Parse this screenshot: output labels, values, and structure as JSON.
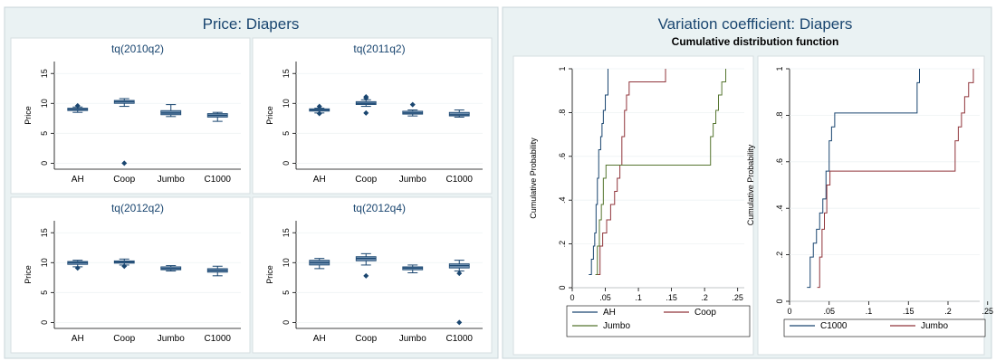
{
  "left_figure": {
    "title": "Price: Diapers",
    "ylabel": "Price",
    "categories": [
      "AH",
      "Coop",
      "Jumbo",
      "C1000"
    ],
    "yticks": [
      "0",
      "5",
      "10",
      "15"
    ],
    "ylim": [
      -1,
      17
    ]
  },
  "right_figure": {
    "title": "Variation coefficient: Diapers",
    "subtitle": "Cumulative distribution function",
    "ylabel": "Cumulative Probability",
    "xticks": [
      "0",
      ".05",
      ".1",
      ".15",
      ".2",
      ".25"
    ],
    "yticks": [
      "0",
      ".2",
      ".4",
      ".6",
      ".8",
      "1"
    ]
  },
  "colors": {
    "box_fill": "#6f8faf",
    "box_line": "#1a4670",
    "AH": "#1a4670",
    "Coop": "#90353b",
    "Jumbo": "#55752f",
    "C1000": "#1a4670",
    "Jumbo_right": "#90353b",
    "panel_bg": "#ffffff",
    "outer_bg": "#eaf2f3"
  },
  "chart_data": [
    {
      "type": "box",
      "title": "tq(2010q2)",
      "ylabel": "Price",
      "categories": [
        "AH",
        "Coop",
        "Jumbo",
        "C1000"
      ],
      "ylim": [
        -1,
        17
      ],
      "boxes": [
        {
          "min": 8.5,
          "q1": 8.8,
          "median": 9.0,
          "q3": 9.2,
          "max": 9.4,
          "outliers": [
            9.6
          ]
        },
        {
          "min": 9.5,
          "q1": 10.0,
          "median": 10.3,
          "q3": 10.5,
          "max": 10.8,
          "outliers": [
            0.0
          ]
        },
        {
          "min": 7.8,
          "q1": 8.1,
          "median": 8.4,
          "q3": 8.8,
          "max": 9.8,
          "outliers": []
        },
        {
          "min": 7.0,
          "q1": 7.7,
          "median": 8.0,
          "q3": 8.3,
          "max": 8.5,
          "outliers": []
        }
      ]
    },
    {
      "type": "box",
      "title": "tq(2011q2)",
      "ylabel": "Price",
      "categories": [
        "AH",
        "Coop",
        "Jumbo",
        "C1000"
      ],
      "ylim": [
        -1,
        17
      ],
      "boxes": [
        {
          "min": 8.4,
          "q1": 8.7,
          "median": 8.9,
          "q3": 9.1,
          "max": 9.2,
          "outliers": [
            8.3,
            9.5
          ]
        },
        {
          "min": 9.5,
          "q1": 9.8,
          "median": 10.0,
          "q3": 10.3,
          "max": 10.6,
          "outliers": [
            8.4,
            10.9,
            11.1
          ]
        },
        {
          "min": 7.9,
          "q1": 8.2,
          "median": 8.4,
          "q3": 8.7,
          "max": 8.9,
          "outliers": [
            9.8
          ]
        },
        {
          "min": 7.7,
          "q1": 7.9,
          "median": 8.1,
          "q3": 8.5,
          "max": 8.9,
          "outliers": []
        }
      ]
    },
    {
      "type": "box",
      "title": "tq(2012q2)",
      "ylabel": "Price",
      "categories": [
        "AH",
        "Coop",
        "Jumbo",
        "C1000"
      ],
      "ylim": [
        -1,
        17
      ],
      "boxes": [
        {
          "min": 9.3,
          "q1": 9.7,
          "median": 10.0,
          "q3": 10.2,
          "max": 10.4,
          "outliers": [
            9.1
          ]
        },
        {
          "min": 9.6,
          "q1": 9.9,
          "median": 10.1,
          "q3": 10.3,
          "max": 10.6,
          "outliers": [
            9.4
          ]
        },
        {
          "min": 8.6,
          "q1": 8.8,
          "median": 9.0,
          "q3": 9.3,
          "max": 9.5,
          "outliers": []
        },
        {
          "min": 7.8,
          "q1": 8.4,
          "median": 8.7,
          "q3": 9.0,
          "max": 9.4,
          "outliers": []
        }
      ]
    },
    {
      "type": "box",
      "title": "tq(2012q4)",
      "ylabel": "Price",
      "categories": [
        "AH",
        "Coop",
        "Jumbo",
        "C1000"
      ],
      "ylim": [
        -1,
        17
      ],
      "boxes": [
        {
          "min": 9.0,
          "q1": 9.6,
          "median": 10.0,
          "q3": 10.4,
          "max": 10.7,
          "outliers": []
        },
        {
          "min": 9.6,
          "q1": 10.3,
          "median": 10.7,
          "q3": 11.0,
          "max": 11.5,
          "outliers": [
            7.8
          ]
        },
        {
          "min": 8.3,
          "q1": 8.8,
          "median": 9.1,
          "q3": 9.3,
          "max": 9.6,
          "outliers": []
        },
        {
          "min": 8.6,
          "q1": 9.1,
          "median": 9.5,
          "q3": 9.8,
          "max": 10.4,
          "outliers": [
            8.2,
            0.0
          ]
        }
      ]
    },
    {
      "type": "line",
      "subtype": "step",
      "title": "Variation coefficient: Diapers",
      "subtitle": "Cumulative distribution function",
      "ylabel": "Cumulative Probability",
      "xlim": [
        0,
        0.26
      ],
      "ylim": [
        0,
        1
      ],
      "xticks": [
        0,
        0.05,
        0.1,
        0.15,
        0.2,
        0.25
      ],
      "yticks": [
        0,
        0.2,
        0.4,
        0.6,
        0.8,
        1
      ],
      "legend": "bottom",
      "series": [
        {
          "name": "AH",
          "x": [
            0.025,
            0.029,
            0.032,
            0.034,
            0.036,
            0.038,
            0.04,
            0.043,
            0.045,
            0.047,
            0.05,
            0.054
          ],
          "y": [
            0.06,
            0.13,
            0.19,
            0.25,
            0.38,
            0.5,
            0.63,
            0.69,
            0.75,
            0.81,
            0.88,
            1.0
          ]
        },
        {
          "name": "Coop",
          "x": [
            0.038,
            0.042,
            0.046,
            0.052,
            0.058,
            0.064,
            0.068,
            0.072,
            0.075,
            0.079,
            0.082,
            0.086,
            0.141
          ],
          "y": [
            0.06,
            0.19,
            0.25,
            0.31,
            0.38,
            0.44,
            0.5,
            0.56,
            0.69,
            0.81,
            0.88,
            0.94,
            1.0
          ]
        },
        {
          "name": "Jumbo",
          "x": [
            0.035,
            0.038,
            0.041,
            0.044,
            0.047,
            0.051,
            0.209,
            0.213,
            0.217,
            0.221,
            0.226,
            0.232
          ],
          "y": [
            0.06,
            0.19,
            0.31,
            0.38,
            0.5,
            0.56,
            0.69,
            0.75,
            0.81,
            0.88,
            0.94,
            1.0
          ]
        }
      ]
    },
    {
      "type": "line",
      "subtype": "step",
      "ylabel": "Cumulative Probability",
      "xlim": [
        0,
        0.24
      ],
      "ylim": [
        0,
        1
      ],
      "xticks": [
        0,
        0.05,
        0.1,
        0.15,
        0.2,
        0.25
      ],
      "yticks": [
        0,
        0.2,
        0.4,
        0.6,
        0.8,
        1
      ],
      "legend": "bottom",
      "series": [
        {
          "name": "C1000",
          "x": [
            0.022,
            0.026,
            0.03,
            0.034,
            0.038,
            0.042,
            0.046,
            0.05,
            0.053,
            0.057,
            0.161,
            0.164
          ],
          "y": [
            0.06,
            0.19,
            0.25,
            0.31,
            0.38,
            0.44,
            0.56,
            0.69,
            0.75,
            0.81,
            0.94,
            1.0
          ]
        },
        {
          "name": "Jumbo",
          "x": [
            0.035,
            0.038,
            0.041,
            0.044,
            0.047,
            0.051,
            0.209,
            0.213,
            0.217,
            0.221,
            0.226,
            0.232
          ],
          "y": [
            0.06,
            0.19,
            0.31,
            0.38,
            0.5,
            0.56,
            0.69,
            0.75,
            0.81,
            0.88,
            0.94,
            1.0
          ]
        }
      ]
    }
  ]
}
